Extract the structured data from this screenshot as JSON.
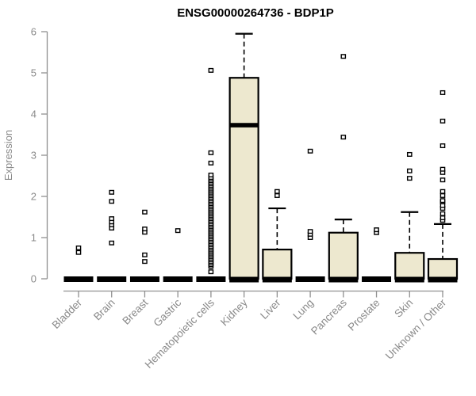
{
  "chart_data": {
    "type": "boxplot",
    "title": "ENSG00000264736 - BDP1P",
    "ylabel": "Expression",
    "xlabel": "",
    "ylim": [
      0,
      6
    ],
    "yticks": [
      0,
      1,
      2,
      3,
      4,
      5,
      6
    ],
    "grid": false,
    "legend": false,
    "categories": [
      "Bladder",
      "Brain",
      "Breast",
      "Gastric",
      "Hematopoietic cells",
      "Kidney",
      "Liver",
      "Lung",
      "Pancreas",
      "Prostate",
      "Skin",
      "Unknown / Other"
    ],
    "series": [
      {
        "category": "Bladder",
        "q1": 0,
        "median": 0,
        "q3": 0,
        "whisker_low": 0,
        "whisker_high": 0,
        "outliers": [
          0.64,
          0.75
        ]
      },
      {
        "category": "Brain",
        "q1": 0,
        "median": 0,
        "q3": 0,
        "whisker_low": 0,
        "whisker_high": 0,
        "outliers": [
          0.87,
          1.23,
          1.31,
          1.38,
          1.46,
          1.88,
          2.1
        ]
      },
      {
        "category": "Breast",
        "q1": 0,
        "median": 0,
        "q3": 0,
        "whisker_low": 0,
        "whisker_high": 0,
        "outliers": [
          0.42,
          0.58,
          1.13,
          1.21,
          1.62
        ]
      },
      {
        "category": "Gastric",
        "q1": 0,
        "median": 0,
        "q3": 0,
        "whisker_low": 0,
        "whisker_high": 0,
        "outliers": [
          1.17
        ]
      },
      {
        "category": "Hematopoietic cells",
        "q1": 0,
        "median": 0,
        "q3": 0,
        "whisker_low": 0,
        "whisker_high": 0,
        "outliers": [
          0.17,
          0.3,
          0.34,
          0.38,
          0.42,
          0.46,
          0.5,
          0.54,
          0.58,
          0.62,
          0.66,
          0.7,
          0.74,
          0.78,
          0.82,
          0.86,
          0.9,
          0.94,
          0.98,
          1.02,
          1.06,
          1.1,
          1.14,
          1.18,
          1.22,
          1.26,
          1.3,
          1.34,
          1.38,
          1.42,
          1.46,
          1.5,
          1.54,
          1.58,
          1.62,
          1.66,
          1.7,
          1.74,
          1.78,
          1.82,
          1.86,
          1.9,
          1.94,
          1.98,
          2.02,
          2.06,
          2.1,
          2.14,
          2.18,
          2.22,
          2.26,
          2.3,
          2.34,
          2.38,
          2.42,
          2.46,
          2.52,
          2.81,
          3.06,
          5.06
        ]
      },
      {
        "category": "Kidney",
        "q1": 0,
        "median": 3.73,
        "q3": 4.88,
        "whisker_low": 0,
        "whisker_high": 5.95,
        "outliers": []
      },
      {
        "category": "Liver",
        "q1": 0,
        "median": 0,
        "q3": 0.71,
        "whisker_low": 0,
        "whisker_high": 1.71,
        "outliers": [
          2.02,
          2.12
        ]
      },
      {
        "category": "Lung",
        "q1": 0,
        "median": 0,
        "q3": 0,
        "whisker_low": 0,
        "whisker_high": 0,
        "outliers": [
          1.0,
          1.08,
          1.15,
          3.1
        ]
      },
      {
        "category": "Pancreas",
        "q1": 0,
        "median": 0,
        "q3": 1.12,
        "whisker_low": 0,
        "whisker_high": 1.44,
        "outliers": [
          3.44,
          5.4
        ]
      },
      {
        "category": "Prostate",
        "q1": 0,
        "median": 0,
        "q3": 0,
        "whisker_low": 0,
        "whisker_high": 0,
        "outliers": [
          1.12,
          1.19
        ]
      },
      {
        "category": "Skin",
        "q1": 0,
        "median": 0,
        "q3": 0.63,
        "whisker_low": 0,
        "whisker_high": 1.62,
        "outliers": [
          2.44,
          2.62,
          3.02
        ]
      },
      {
        "category": "Unknown / Other",
        "q1": 0,
        "median": 0,
        "q3": 0.48,
        "whisker_low": 0,
        "whisker_high": 1.33,
        "outliers": [
          1.42,
          1.48,
          1.58,
          1.71,
          1.78,
          1.87,
          1.9,
          2.02,
          2.12,
          2.4,
          2.58,
          2.66,
          3.23,
          3.83,
          4.52
        ]
      }
    ],
    "colors": {
      "background": "#ffffff",
      "box_fill": "#ede8cf",
      "box_border": "#000000",
      "median": "#000000",
      "whisker": "#000000",
      "outlier_fill": "#ffffff",
      "outlier_border": "#000000",
      "axis": "#909090",
      "tick_text": "#8a8a8a",
      "title_text": "#000000"
    }
  }
}
